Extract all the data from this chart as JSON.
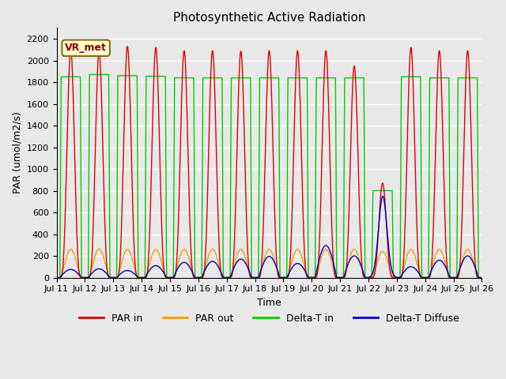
{
  "title": "Photosynthetic Active Radiation",
  "xlabel": "Time",
  "ylabel": "PAR (umol/m2/s)",
  "ylim": [
    0,
    2300
  ],
  "yticks": [
    0,
    200,
    400,
    600,
    800,
    1000,
    1200,
    1400,
    1600,
    1800,
    2000,
    2200
  ],
  "background_color": "#e8e8e8",
  "plot_bg_color": "#e8e8e8",
  "grid_color": "#ffffff",
  "label_box_text": "VR_met",
  "legend_entries": [
    "PAR in",
    "PAR out",
    "Delta-T in",
    "Delta-T Diffuse"
  ],
  "colors": {
    "PAR in": "#dd0000",
    "PAR out": "#ff9900",
    "Delta-T in": "#00cc00",
    "Delta-T Diffuse": "#0000cc"
  },
  "x_tick_labels": [
    "Jul 11",
    "Jul 12",
    "Jul 13",
    "Jul 14",
    "Jul 15",
    "Jul 16",
    "Jul 17",
    "Jul 18",
    "Jul 19",
    "Jul 20",
    "Jul 21",
    "Jul 22",
    "Jul 23",
    "Jul 24",
    "Jul 25",
    "Jul 26"
  ],
  "n_days": 15,
  "points_per_day": 144,
  "par_in_peaks": [
    2100,
    2080,
    2130,
    2120,
    2090,
    2090,
    2085,
    2090,
    2090,
    2090,
    1950,
    870,
    2120,
    2090,
    2090
  ],
  "par_out_peaks": [
    260,
    265,
    260,
    260,
    260,
    260,
    260,
    260,
    260,
    260,
    260,
    240,
    260,
    260,
    260
  ],
  "delta_t_peaks": [
    1850,
    1870,
    1860,
    1855,
    1840,
    1840,
    1840,
    1840,
    1840,
    1840,
    1840,
    800,
    1850,
    1840,
    1840
  ],
  "blue_base_vals": [
    75,
    80,
    65,
    110,
    140,
    150,
    170,
    195,
    130,
    295,
    200,
    750,
    100,
    160,
    200
  ]
}
